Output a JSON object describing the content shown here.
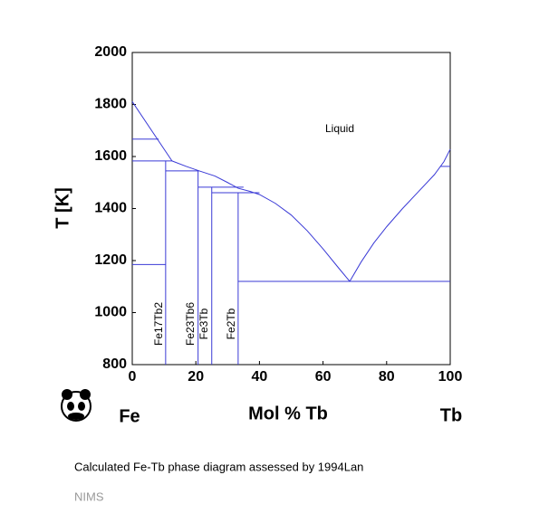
{
  "chart_data": {
    "type": "line",
    "title": "Calculated Fe-Tb phase diagram assessed by 1994Lan",
    "source": "NIMS",
    "xlabel": "Mol % Tb",
    "ylabel": "T [K]",
    "left_element": "Fe",
    "right_element": "Tb",
    "xlim": [
      0,
      100
    ],
    "ylim": [
      800,
      2000
    ],
    "xticks": [
      0,
      20,
      40,
      60,
      80,
      100
    ],
    "yticks": [
      800,
      1000,
      1200,
      1400,
      1600,
      1800,
      2000
    ],
    "phase_labels": [
      "Liquid",
      "Fe17Tb2",
      "Fe23Tb6",
      "Fe3Tb",
      "Fe2Tb"
    ],
    "series": [
      {
        "color": "#3a3ad6",
        "x": [
          0,
          12.5
        ],
        "values": [
          1811,
          1583
        ]
      },
      {
        "color": "#3a3ad6",
        "x": [
          12.5,
          17,
          21,
          26,
          30,
          33.3,
          37,
          40,
          45,
          50,
          55,
          60,
          65,
          68.4
        ],
        "values": [
          1583,
          1562,
          1545,
          1525,
          1500,
          1478,
          1466,
          1454,
          1420,
          1375,
          1315,
          1245,
          1170,
          1120
        ]
      },
      {
        "color": "#3a3ad6",
        "x": [
          68.4,
          72,
          76,
          80,
          85,
          90,
          95,
          98,
          100
        ],
        "values": [
          1120,
          1195,
          1268,
          1330,
          1400,
          1465,
          1530,
          1580,
          1628
        ]
      },
      {
        "color": "#3a3ad6",
        "x": [
          0,
          8.3
        ],
        "values": [
          1667,
          1667
        ]
      },
      {
        "color": "#3a3ad6",
        "x": [
          0,
          12.5
        ],
        "values": [
          1583,
          1583
        ]
      },
      {
        "color": "#3a3ad6",
        "x": [
          0,
          10.5
        ],
        "values": [
          1185,
          1185
        ]
      },
      {
        "color": "#3a3ad6",
        "x": [
          10.5,
          10.5
        ],
        "values": [
          800,
          1583
        ]
      },
      {
        "color": "#3a3ad6",
        "x": [
          10.5,
          21
        ],
        "values": [
          1545,
          1545
        ]
      },
      {
        "color": "#3a3ad6",
        "x": [
          20.7,
          20.7
        ],
        "values": [
          800,
          1545
        ]
      },
      {
        "color": "#3a3ad6",
        "x": [
          20.7,
          35
        ],
        "values": [
          1482,
          1482
        ]
      },
      {
        "color": "#3a3ad6",
        "x": [
          25,
          25
        ],
        "values": [
          800,
          1482
        ]
      },
      {
        "color": "#3a3ad6",
        "x": [
          25,
          40
        ],
        "values": [
          1461,
          1461
        ]
      },
      {
        "color": "#3a3ad6",
        "x": [
          33.3,
          33.3
        ],
        "values": [
          800,
          1461
        ]
      },
      {
        "color": "#3a3ad6",
        "x": [
          33.3,
          100
        ],
        "values": [
          1120,
          1120
        ]
      },
      {
        "color": "#3a3ad6",
        "x": [
          97,
          100
        ],
        "values": [
          1562,
          1562
        ]
      }
    ]
  }
}
